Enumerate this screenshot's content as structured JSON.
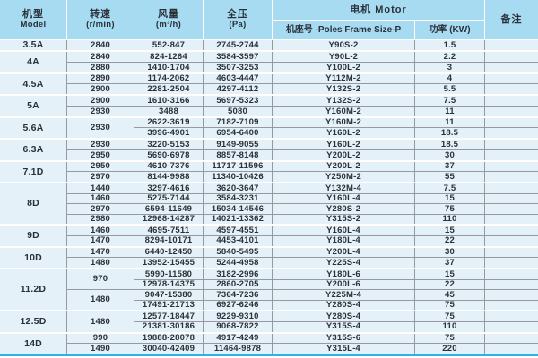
{
  "header": {
    "model_zh": "机型",
    "model_en": "Model",
    "speed_zh": "转速",
    "speed_unit": "(r/min)",
    "flow_zh": "风量",
    "flow_unit": "(m³/h)",
    "pressure_zh": "全压",
    "pressure_unit": "(Pa)",
    "motor": "电机 Motor",
    "frame": "机座号 -Poles Frame Size-P",
    "power": "功率 (KW)",
    "remark": "备注"
  },
  "colors": {
    "header_bg": "#a6dbf2",
    "row_bg": "#e4f1f9",
    "line": "#96999d",
    "accent": "#2eb2e8",
    "text": "#2b3138"
  },
  "groups": [
    {
      "model": "3.5A",
      "rows": [
        {
          "speed": "2840",
          "flow": "552-847",
          "pressure": "2745-2744",
          "frame": "Y90S-2",
          "power": "1.5",
          "remark": ""
        }
      ]
    },
    {
      "model": "4A",
      "rows": [
        {
          "speed": "2840",
          "flow": "824-1264",
          "pressure": "3584-3597",
          "frame": "Y90L-2",
          "power": "2.2",
          "remark": ""
        },
        {
          "speed": "2880",
          "flow": "1410-1704",
          "pressure": "3507-3253",
          "frame": "Y100L-2",
          "power": "3",
          "remark": ""
        }
      ]
    },
    {
      "model": "4.5A",
      "rows": [
        {
          "speed": "2890",
          "flow": "1174-2062",
          "pressure": "4603-4447",
          "frame": "Y112M-2",
          "power": "4",
          "remark": ""
        },
        {
          "speed": "2900",
          "flow": "2281-2504",
          "pressure": "4297-4112",
          "frame": "Y132S-2",
          "power": "5.5",
          "remark": ""
        }
      ]
    },
    {
      "model": "5A",
      "rows": [
        {
          "speed": "2900",
          "flow": "1610-3166",
          "pressure": "5697-5323",
          "frame": "Y132S-2",
          "power": "7.5",
          "remark": ""
        },
        {
          "speed": "2930",
          "flow": "3488",
          "pressure": "5080",
          "frame": "Y160M-2",
          "power": "11",
          "remark": ""
        }
      ]
    },
    {
      "model": "5.6A",
      "rows": [
        {
          "speed": "2930",
          "flow": "2622-3619",
          "pressure": "7182-7109",
          "frame": "Y160M-2",
          "power": "11",
          "remark": ""
        },
        {
          "speed": null,
          "flow": "3996-4901",
          "pressure": "6954-6400",
          "frame": "Y160L-2",
          "power": "18.5",
          "remark": ""
        }
      ]
    },
    {
      "model": "6.3A",
      "rows": [
        {
          "speed": "2930",
          "flow": "3220-5153",
          "pressure": "9149-9055",
          "frame": "Y160L-2",
          "power": "18.5",
          "remark": ""
        },
        {
          "speed": "2950",
          "flow": "5690-6978",
          "pressure": "8857-8148",
          "frame": "Y200L-2",
          "power": "30",
          "remark": ""
        }
      ]
    },
    {
      "model": "7.1D",
      "rows": [
        {
          "speed": "2950",
          "flow": "4610-7376",
          "pressure": "11717-11596",
          "frame": "Y200L-2",
          "power": "37",
          "remark": ""
        },
        {
          "speed": "2970",
          "flow": "8144-9988",
          "pressure": "11340-10426",
          "frame": "Y250M-2",
          "power": "55",
          "remark": ""
        }
      ]
    },
    {
      "model": "8D",
      "rows": [
        {
          "speed": "1440",
          "flow": "3297-4616",
          "pressure": "3620-3647",
          "frame": "Y132M-4",
          "power": "7.5",
          "remark": ""
        },
        {
          "speed": "1460",
          "flow": "5275-7144",
          "pressure": "3584-3231",
          "frame": "Y160L-4",
          "power": "15",
          "remark": ""
        },
        {
          "speed": "2970",
          "flow": "6594-11649",
          "pressure": "15034-14546",
          "frame": "Y280S-2",
          "power": "75",
          "remark": ""
        },
        {
          "speed": "2980",
          "flow": "12968-14287",
          "pressure": "14021-13362",
          "frame": "Y315S-2",
          "power": "110",
          "remark": ""
        }
      ]
    },
    {
      "model": "9D",
      "rows": [
        {
          "speed": "1460",
          "flow": "4695-7511",
          "pressure": "4597-4551",
          "frame": "Y160L-4",
          "power": "15",
          "remark": ""
        },
        {
          "speed": "1470",
          "flow": "8294-10171",
          "pressure": "4453-4101",
          "frame": "Y180L-4",
          "power": "22",
          "remark": ""
        }
      ]
    },
    {
      "model": "10D",
      "rows": [
        {
          "speed": "1470",
          "flow": "6440-12450",
          "pressure": "5840-5495",
          "frame": "Y200L-4",
          "power": "30",
          "remark": ""
        },
        {
          "speed": "1480",
          "flow": "13952-15455",
          "pressure": "5244-4958",
          "frame": "Y225S-4",
          "power": "37",
          "remark": ""
        }
      ]
    },
    {
      "model": "11.2D",
      "rows": [
        {
          "speed": "970",
          "flow": "5990-11580",
          "pressure": "3182-2996",
          "frame": "Y180L-6",
          "power": "15",
          "remark": ""
        },
        {
          "speed": null,
          "flow": "12978-14375",
          "pressure": "2860-2705",
          "frame": "Y200L-6",
          "power": "22",
          "remark": ""
        },
        {
          "speed": "1480",
          "flow": "9047-15380",
          "pressure": "7364-7236",
          "frame": "Y225M-4",
          "power": "45",
          "remark": ""
        },
        {
          "speed": null,
          "flow": "17491-21713",
          "pressure": "6927-6246",
          "frame": "Y280S-4",
          "power": "75",
          "remark": ""
        }
      ]
    },
    {
      "model": "12.5D",
      "rows": [
        {
          "speed": "1480",
          "flow": "12577-18447",
          "pressure": "9229-9310",
          "frame": "Y280S-4",
          "power": "75",
          "remark": ""
        },
        {
          "speed": null,
          "flow": "21381-30186",
          "pressure": "9068-7822",
          "frame": "Y315S-4",
          "power": "110",
          "remark": ""
        }
      ]
    },
    {
      "model": "14D",
      "rows": [
        {
          "speed": "990",
          "flow": "19888-28078",
          "pressure": "4917-4249",
          "frame": "Y315S-6",
          "power": "75",
          "remark": ""
        },
        {
          "speed": "1490",
          "flow": "30040-42409",
          "pressure": "11464-9878",
          "frame": "Y315L-4",
          "power": "220",
          "remark": ""
        }
      ]
    }
  ]
}
